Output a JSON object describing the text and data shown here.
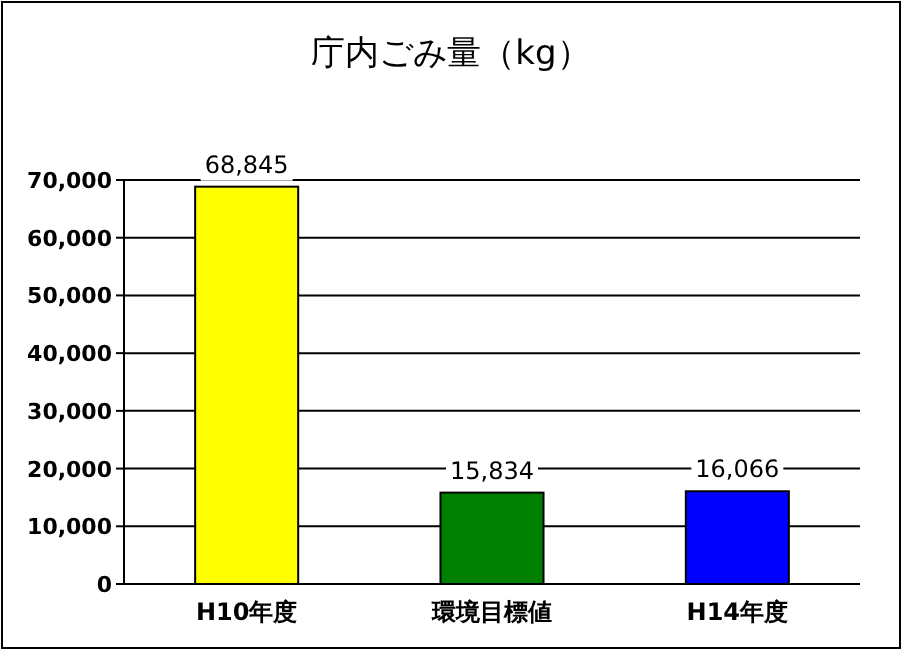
{
  "chart_data": {
    "type": "bar",
    "title": "庁内ごみ量（kg）",
    "categories": [
      "H10年度",
      "環境目標値",
      "H14年度"
    ],
    "values": [
      68845,
      15834,
      16066
    ],
    "value_labels": [
      "68,845",
      "15,834",
      "16,066"
    ],
    "colors": [
      "#ffff00",
      "#008000",
      "#0000ff"
    ],
    "ylim": [
      0,
      70000
    ],
    "yticks": [
      {
        "value": 0,
        "label": "0"
      },
      {
        "value": 10000,
        "label": "10,000"
      },
      {
        "value": 20000,
        "label": "20,000"
      },
      {
        "value": 30000,
        "label": "30,000"
      },
      {
        "value": 40000,
        "label": "40,000"
      },
      {
        "value": 50000,
        "label": "50,000"
      },
      {
        "value": 60000,
        "label": "60,000"
      },
      {
        "value": 70000,
        "label": "70,000"
      }
    ],
    "grid": "y"
  }
}
